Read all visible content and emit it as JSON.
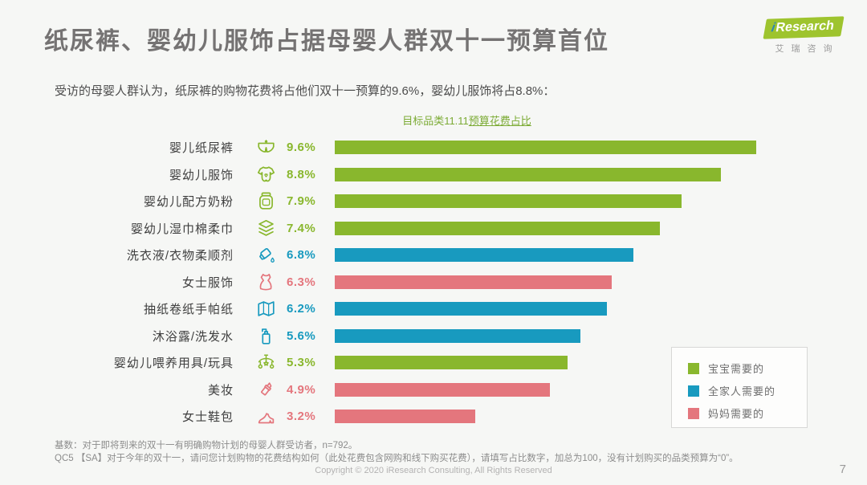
{
  "page": {
    "title": "纸尿裤、婴幼儿服饰占据母婴人群双十一预算首位",
    "subtitle": "受访的母婴人群认为，纸尿裤的购物花费将占他们双十一预算的9.6%，婴幼儿服饰将占8.8%：",
    "footnotes": [
      "基数：对于即将到来的双十一有明确购物计划的母婴人群受访者，n=792。",
      "QC5  【SA】对于今年的双十一，请问您计划购物的花费结构如何（此处花费包含网购和线下购买花费），请填写占比数字，加总为100，没有计划购买的品类预算为“0”。"
    ],
    "copyright": "Copyright © 2020 iResearch Consulting, All Rights Reserved",
    "page_number": "7"
  },
  "logo": {
    "brand_i": "i",
    "brand_word": "Research",
    "brand_cn": "艾瑞咨询"
  },
  "chart_data": {
    "type": "bar",
    "orientation": "horizontal",
    "title_plain": "目标品类11.11",
    "title_underlined": "预算花费占比",
    "unit": "%",
    "max_value": 9.6,
    "grid": false,
    "legend_position": "bottom-right",
    "categories": [
      "婴儿纸尿裤",
      "婴幼儿服饰",
      "婴幼儿配方奶粉",
      "婴幼儿湿巾棉柔巾",
      "洗衣液/衣物柔顺剂",
      "女士服饰",
      "抽纸卷纸手帕纸",
      "沐浴露/洗发水",
      "婴幼儿喂养用具/玩具",
      "美妆",
      "女士鞋包"
    ],
    "values": [
      9.6,
      8.8,
      7.9,
      7.4,
      6.8,
      6.3,
      6.2,
      5.6,
      5.3,
      4.9,
      3.2
    ],
    "items": [
      {
        "label": "婴儿纸尿裤",
        "value": 9.6,
        "display": "9.6%",
        "group": "baby",
        "icon": "diaper-icon"
      },
      {
        "label": "婴幼儿服饰",
        "value": 8.8,
        "display": "8.8%",
        "group": "baby",
        "icon": "onesie-icon"
      },
      {
        "label": "婴幼儿配方奶粉",
        "value": 7.9,
        "display": "7.9%",
        "group": "baby",
        "icon": "milk-jar-icon"
      },
      {
        "label": "婴幼儿湿巾棉柔巾",
        "value": 7.4,
        "display": "7.4%",
        "group": "baby",
        "icon": "wipes-layers-icon"
      },
      {
        "label": "洗衣液/衣物柔顺剂",
        "value": 6.8,
        "display": "6.8%",
        "group": "family",
        "icon": "detergent-jug-icon"
      },
      {
        "label": "女士服饰",
        "value": 6.3,
        "display": "6.3%",
        "group": "mom",
        "icon": "dress-icon"
      },
      {
        "label": "抽纸卷纸手帕纸",
        "value": 6.2,
        "display": "6.2%",
        "group": "family",
        "icon": "tissue-icon"
      },
      {
        "label": "沐浴露/洗发水",
        "value": 5.6,
        "display": "5.6%",
        "group": "family",
        "icon": "pump-bottle-icon"
      },
      {
        "label": "婴幼儿喂养用具/玩具",
        "value": 5.3,
        "display": "5.3%",
        "group": "baby",
        "icon": "baby-mobile-icon"
      },
      {
        "label": "美妆",
        "value": 4.9,
        "display": "4.9%",
        "group": "mom",
        "icon": "lipstick-icon"
      },
      {
        "label": "女士鞋包",
        "value": 3.2,
        "display": "3.2%",
        "group": "mom",
        "icon": "high-heel-icon"
      }
    ],
    "colors": {
      "baby": "#89b72d",
      "family": "#189abf",
      "mom": "#e4767d"
    },
    "legend": [
      {
        "label": "宝宝需要的",
        "group": "baby",
        "color": "#89b72d"
      },
      {
        "label": "全家人需要的",
        "group": "family",
        "color": "#189abf"
      },
      {
        "label": "妈妈需要的",
        "group": "mom",
        "color": "#e4767d"
      }
    ]
  }
}
